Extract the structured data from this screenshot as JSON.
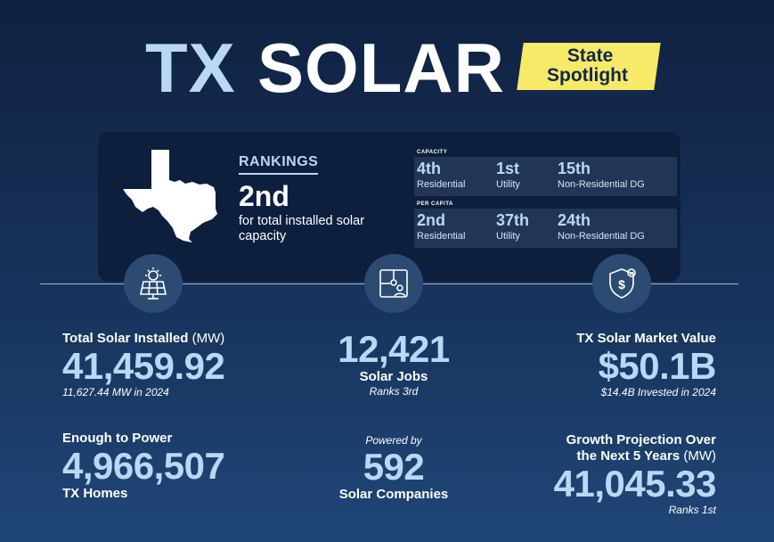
{
  "title": {
    "part1": "TX",
    "part2": "SOLAR"
  },
  "badge": {
    "line1": "State",
    "line2": "Spotlight"
  },
  "rankings": {
    "heading": "RANKINGS",
    "overall_rank": "2nd",
    "overall_desc": "for total installed solar capacity",
    "capacity": {
      "label": "CAPACITY",
      "items": [
        {
          "rank": "4th",
          "category": "Residential"
        },
        {
          "rank": "1st",
          "category": "Utility"
        },
        {
          "rank": "15th",
          "category": "Non-Residential DG"
        }
      ]
    },
    "per_capita": {
      "label": "PER CAPITA",
      "items": [
        {
          "rank": "2nd",
          "category": "Residential"
        },
        {
          "rank": "37th",
          "category": "Utility"
        },
        {
          "rank": "24th",
          "category": "Non-Residential DG"
        }
      ]
    }
  },
  "icons": [
    "solar-panel-icon",
    "puzzle-person-icon",
    "shield-dollar-icon"
  ],
  "stats": {
    "installed": {
      "label": "Total Solar Installed",
      "unit": "(MW)",
      "value": "41,459.92",
      "note": "11,627.44 MW in 2024"
    },
    "homes": {
      "label": "Enough to Power",
      "value": "4,966,507",
      "sub": "TX Homes"
    },
    "jobs": {
      "value": "12,421",
      "label": "Solar Jobs",
      "note": "Ranks 3rd"
    },
    "companies": {
      "prefix": "Powered by",
      "value": "592",
      "label": "Solar Companies"
    },
    "market": {
      "label": "TX Solar Market Value",
      "value": "$50.1B",
      "note": "$14.4B Invested in 2024"
    },
    "growth": {
      "label_line1": "Growth Projection Over",
      "label_line2": "the Next 5 Years",
      "unit": "(MW)",
      "value": "41,045.33",
      "note": "Ranks 1st"
    }
  },
  "colors": {
    "accent": "#b9d8f5",
    "badge": "#f7ea68",
    "panel": "#0d1f3d",
    "background": "#18335c"
  }
}
